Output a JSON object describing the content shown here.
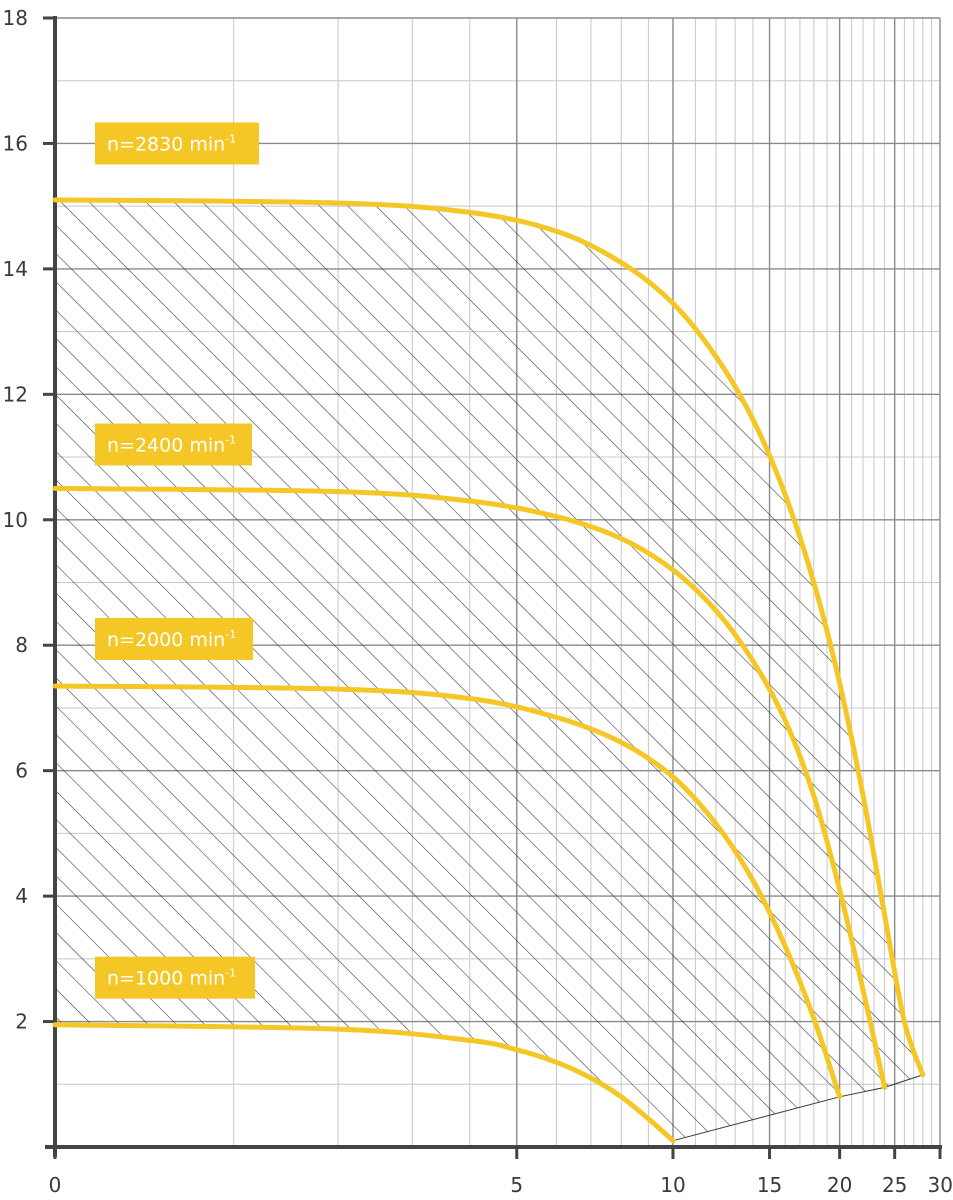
{
  "chart_data": {
    "type": "line",
    "title": "",
    "xlabel": "",
    "ylabel": "",
    "xlim": [
      0,
      30
    ],
    "ylim": [
      0,
      18
    ],
    "x_scale": "log",
    "x_tick_labels": [
      "0",
      "5",
      "10",
      "15",
      "20",
      "25",
      "30"
    ],
    "y_tick_labels": [
      "2",
      "4",
      "6",
      "8",
      "10",
      "12",
      "14",
      "16",
      "18"
    ],
    "x_ticks": [
      0,
      5,
      10,
      15,
      20,
      25,
      30
    ],
    "y_ticks": [
      2,
      4,
      6,
      8,
      10,
      12,
      14,
      16,
      18
    ],
    "grid": true,
    "curve_color": "#f5c726",
    "hatch_color": "#333333",
    "series": [
      {
        "name": "n=2830 min",
        "label_main": "n=2830 min",
        "label_sup": "-1",
        "label_value_y": 16,
        "points": [
          [
            0,
            15.1
          ],
          [
            2,
            15.05
          ],
          [
            4,
            14.9
          ],
          [
            6,
            14.6
          ],
          [
            8,
            14.1
          ],
          [
            10,
            13.45
          ],
          [
            12,
            12.6
          ],
          [
            14,
            11.6
          ],
          [
            16,
            10.4
          ],
          [
            18,
            9.0
          ],
          [
            20,
            7.4
          ],
          [
            22,
            5.6
          ],
          [
            24,
            3.7
          ],
          [
            26,
            2.0
          ],
          [
            28,
            1.15
          ]
        ]
      },
      {
        "name": "n=2400 min",
        "label_main": "n=2400 min",
        "label_sup": "-1",
        "label_value_y": 11.2,
        "points": [
          [
            0,
            10.5
          ],
          [
            2,
            10.45
          ],
          [
            4,
            10.3
          ],
          [
            6,
            10.05
          ],
          [
            8,
            9.7
          ],
          [
            10,
            9.2
          ],
          [
            12,
            8.55
          ],
          [
            14,
            7.75
          ],
          [
            16,
            6.8
          ],
          [
            18,
            5.6
          ],
          [
            20,
            4.1
          ],
          [
            22,
            2.5
          ],
          [
            24,
            0.95
          ]
        ]
      },
      {
        "name": "n=2000 min",
        "label_main": "n=2000 min",
        "label_sup": "-1",
        "label_value_y": 8.1,
        "points": [
          [
            0,
            7.35
          ],
          [
            2,
            7.3
          ],
          [
            4,
            7.15
          ],
          [
            6,
            6.85
          ],
          [
            8,
            6.45
          ],
          [
            10,
            5.9
          ],
          [
            12,
            5.15
          ],
          [
            14,
            4.25
          ],
          [
            16,
            3.2
          ],
          [
            18,
            2.05
          ],
          [
            20,
            0.8
          ]
        ]
      },
      {
        "name": "n=1000 min",
        "label_main": "n=1000 min",
        "label_sup": "-1",
        "label_value_y": 2.7,
        "points": [
          [
            0,
            1.95
          ],
          [
            2,
            1.88
          ],
          [
            4,
            1.7
          ],
          [
            5,
            1.55
          ],
          [
            6,
            1.35
          ],
          [
            7,
            1.1
          ],
          [
            8,
            0.8
          ],
          [
            9,
            0.45
          ],
          [
            10,
            0.1
          ]
        ]
      }
    ],
    "hatched_region": {
      "upper_series": "n=2830 min",
      "lower_boundary": [
        [
          10,
          0.1
        ],
        [
          20,
          0.8
        ],
        [
          24,
          0.95
        ],
        [
          28,
          1.15
        ]
      ]
    }
  }
}
